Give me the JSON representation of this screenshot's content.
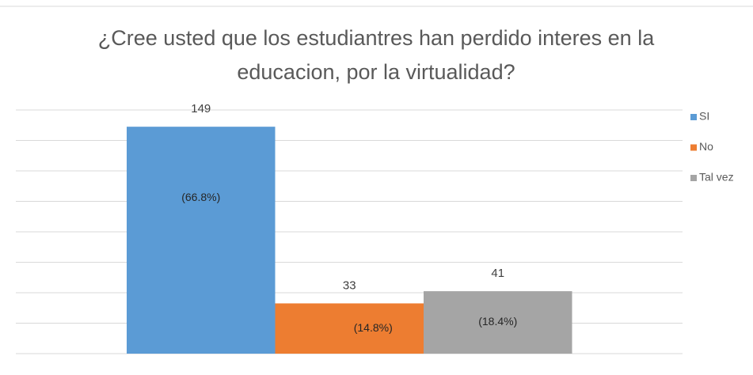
{
  "chart_data": {
    "type": "bar",
    "title": [
      "¿Cree usted que los estudiantres han perdido interes en la",
      "educacion, por la virtualidad?"
    ],
    "series": [
      {
        "name": "SI",
        "color": "#5b9bd5",
        "values": [
          149
        ],
        "percent_labels": [
          "(66.8%)"
        ]
      },
      {
        "name": "No",
        "color": "#ed7d31",
        "values": [
          33
        ],
        "percent_labels": [
          "(14.8%)"
        ]
      },
      {
        "name": "Tal vez",
        "color": "#a5a5a5",
        "values": [
          41
        ],
        "percent_labels": [
          "(18.4%)"
        ]
      }
    ],
    "ylim": [
      0,
      160
    ],
    "yticks": [
      0,
      20,
      40,
      60,
      80,
      100,
      120,
      140,
      160
    ],
    "grid": true,
    "legend": "right"
  }
}
